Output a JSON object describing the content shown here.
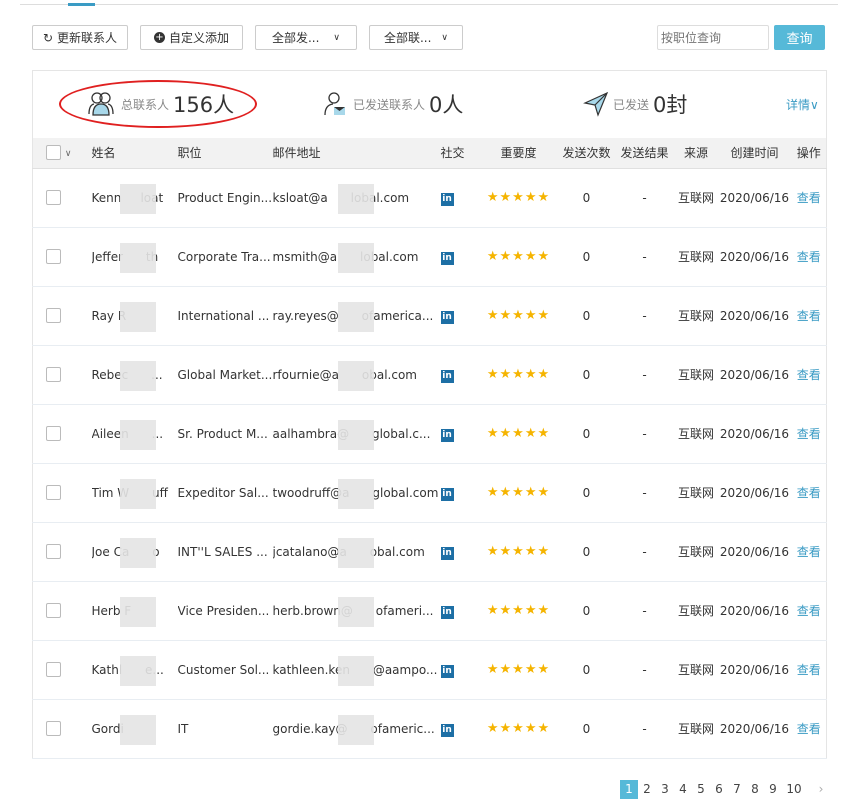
{
  "toolbar": {
    "refresh": "更新联系人",
    "custom_add": "自定义添加",
    "filter1": "全部发...",
    "filter2": "全部联...",
    "search_placeholder": "按职位查询",
    "search_button": "查询"
  },
  "stats": {
    "total_label": "总联系人",
    "total_value": "156人",
    "sent_contacts_label": "已发送联系人",
    "sent_contacts_value": "0人",
    "sent_label": "已发送",
    "sent_value": "0封",
    "detail": "详情∨"
  },
  "columns": [
    "姓名",
    "职位",
    "邮件地址",
    "社交",
    "重要度",
    "发送次数",
    "发送结果",
    "来源",
    "创建时间",
    "操作"
  ],
  "rows": [
    {
      "name": "Kenn     loat",
      "title": "Product Engin...",
      "email": "ksloat@a      lobal.com",
      "stars": 5,
      "sends": "0",
      "result": "-",
      "source": "互联网",
      "date": "2020/06/16",
      "action": "查看"
    },
    {
      "name": "Jeffer      th",
      "title": "Corporate Tra...",
      "email": "msmith@a      lobal.com",
      "stars": 5,
      "sends": "0",
      "result": "-",
      "source": "互联网",
      "date": "2020/06/16",
      "action": "查看"
    },
    {
      "name": "Ray R",
      "title": "International ...",
      "email": "ray.reyes@      ofamerica...",
      "stars": 5,
      "sends": "0",
      "result": "-",
      "source": "互联网",
      "date": "2020/06/16",
      "action": "查看"
    },
    {
      "name": "Rebec      ...",
      "title": "Global Market...",
      "email": "rfournie@a      obal.com",
      "stars": 5,
      "sends": "0",
      "result": "-",
      "source": "互联网",
      "date": "2020/06/16",
      "action": "查看"
    },
    {
      "name": "Aileen      ...",
      "title": "Sr. Product M...",
      "email": "aalhambra@      global.c...",
      "stars": 5,
      "sends": "0",
      "result": "-",
      "source": "互联网",
      "date": "2020/06/16",
      "action": "查看"
    },
    {
      "name": "Tim W      uff",
      "title": "Expeditor Sal...",
      "email": "twoodruff@a      global.com",
      "stars": 5,
      "sends": "0",
      "result": "-",
      "source": "互联网",
      "date": "2020/06/16",
      "action": "查看"
    },
    {
      "name": "Joe Ca      o",
      "title": "INT''L SALES ...",
      "email": "jcatalano@a      obal.com",
      "stars": 5,
      "sends": "0",
      "result": "-",
      "source": "互联网",
      "date": "2020/06/16",
      "action": "查看"
    },
    {
      "name": "Herb F",
      "title": "Vice Presiden...",
      "email": "herb.brown@      ofameri...",
      "stars": 5,
      "sends": "0",
      "result": "-",
      "source": "互联网",
      "date": "2020/06/16",
      "action": "查看"
    },
    {
      "name": "Kathl      e...",
      "title": "Customer Sol...",
      "email": "kathleen.ken      @aampo...",
      "stars": 5,
      "sends": "0",
      "result": "-",
      "source": "互联网",
      "date": "2020/06/16",
      "action": "查看"
    },
    {
      "name": "Gordi",
      "title": "IT",
      "email": "gordie.kay@      ofameric...",
      "stars": 5,
      "sends": "0",
      "result": "-",
      "source": "互联网",
      "date": "2020/06/16",
      "action": "查看"
    }
  ],
  "pagination": {
    "pages": [
      "1",
      "2",
      "3",
      "4",
      "5",
      "6",
      "7",
      "8",
      "9",
      "10"
    ],
    "current": "1",
    "next": "›"
  },
  "colors": {
    "accent": "#56b9d8",
    "link": "#3a9bc4",
    "star": "#f5b400",
    "linkedin": "#1d6fa5",
    "annotation": "#e02020"
  }
}
